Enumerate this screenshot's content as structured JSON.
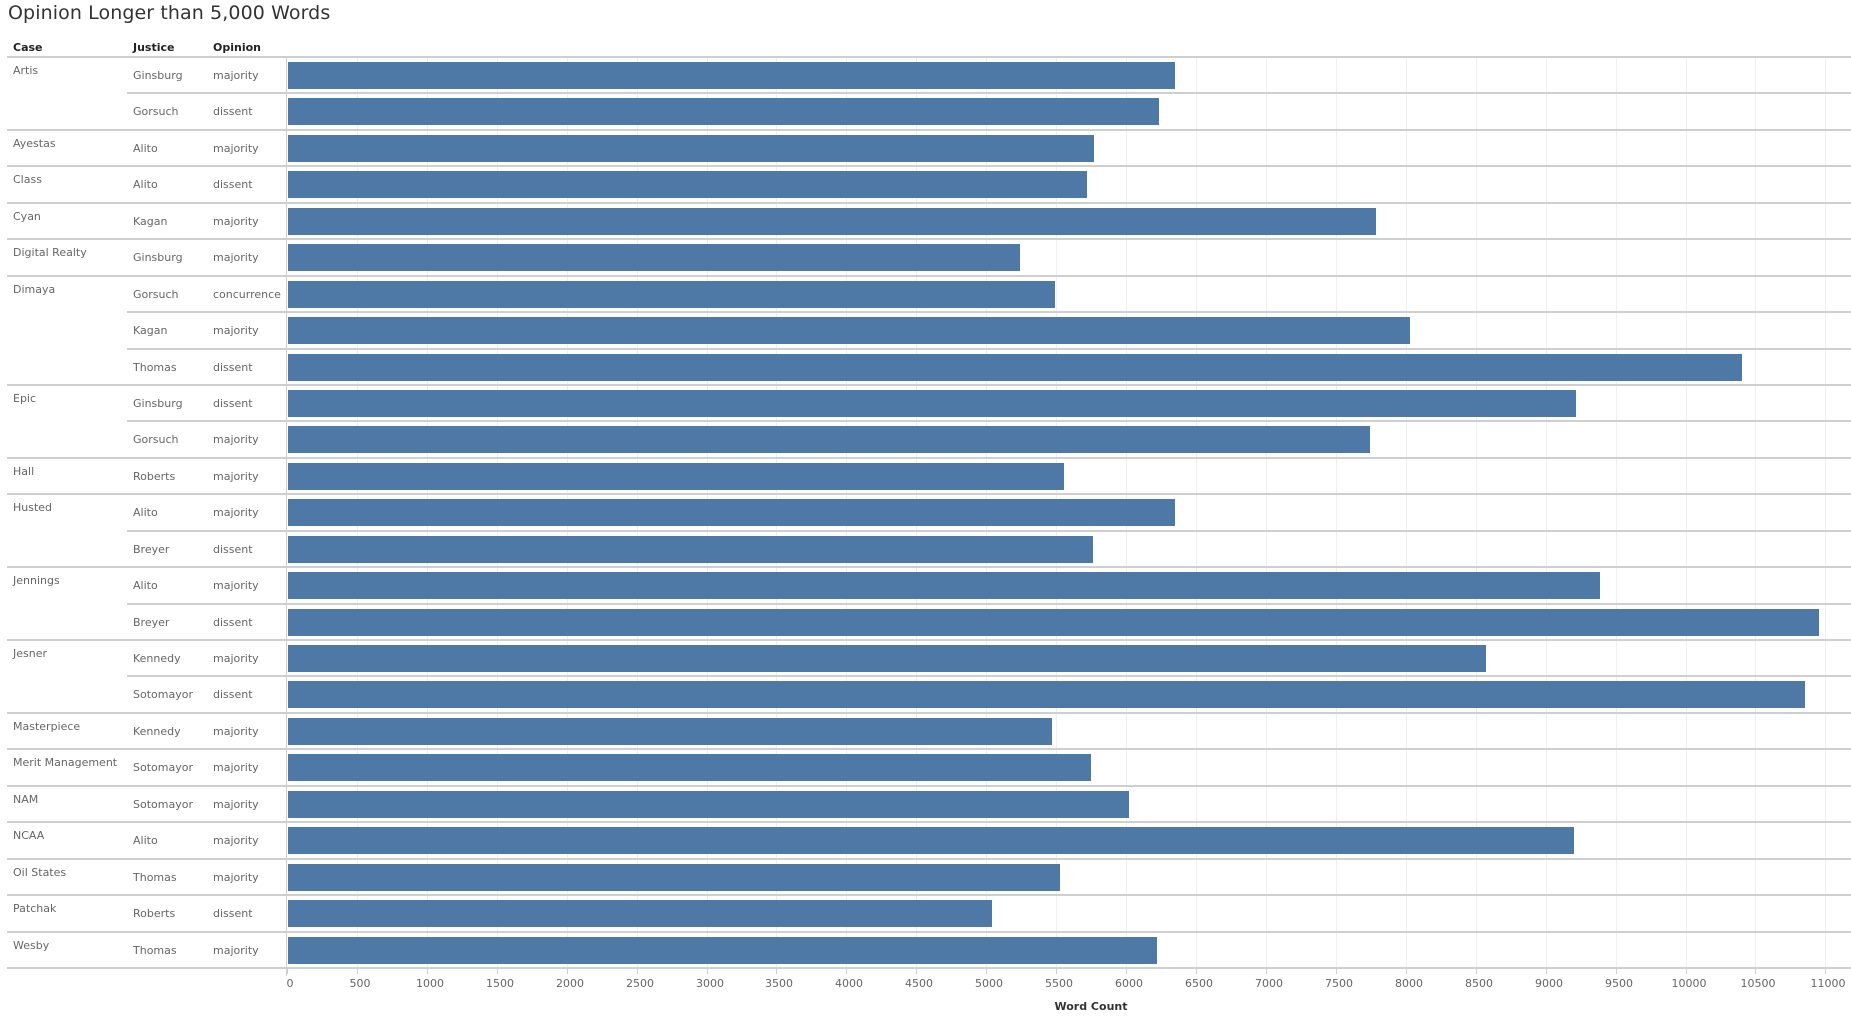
{
  "title": "Opinion Longer than 5,000 Words",
  "headers": {
    "case": "Case",
    "justice": "Justice",
    "opinion": "Opinion"
  },
  "colors": {
    "bar": "#4e79a7",
    "divider": "#cfcfcf",
    "grid": "#efefef"
  },
  "axis": {
    "title": "Word Count",
    "ticks": [
      "0",
      "500",
      "1000",
      "1500",
      "2000",
      "2500",
      "3000",
      "3500",
      "4000",
      "4500",
      "5000",
      "5500",
      "6000",
      "6500",
      "7000",
      "7500",
      "8000",
      "8500",
      "9000",
      "9500",
      "10000",
      "10500",
      "11000"
    ]
  },
  "rows": [
    {
      "case": "Artis",
      "justice": "Ginsburg",
      "opinion": "majority",
      "value": 6345,
      "group_start": true
    },
    {
      "case": "",
      "justice": "Gorsuch",
      "opinion": "dissent",
      "value": 6230,
      "group_start": false
    },
    {
      "case": "Ayestas",
      "justice": "Alito",
      "opinion": "majority",
      "value": 5765,
      "group_start": true
    },
    {
      "case": "Class",
      "justice": "Alito",
      "opinion": "dissent",
      "value": 5715,
      "group_start": true
    },
    {
      "case": "Cyan",
      "justice": "Kagan",
      "opinion": "majority",
      "value": 7782,
      "group_start": true
    },
    {
      "case": "Digital Realty",
      "justice": "Ginsburg",
      "opinion": "majority",
      "value": 5236,
      "group_start": true
    },
    {
      "case": "Dimaya",
      "justice": "Gorsuch",
      "opinion": "concurrence",
      "value": 5487,
      "group_start": true
    },
    {
      "case": "",
      "justice": "Kagan",
      "opinion": "majority",
      "value": 8026,
      "group_start": false
    },
    {
      "case": "",
      "justice": "Thomas",
      "opinion": "dissent",
      "value": 10400,
      "group_start": false
    },
    {
      "case": "Epic",
      "justice": "Ginsburg",
      "opinion": "dissent",
      "value": 9213,
      "group_start": true
    },
    {
      "case": "",
      "justice": "Gorsuch",
      "opinion": "majority",
      "value": 7740,
      "group_start": false
    },
    {
      "case": "Hall",
      "justice": "Roberts",
      "opinion": "majority",
      "value": 5551,
      "group_start": true
    },
    {
      "case": "Husted",
      "justice": "Alito",
      "opinion": "majority",
      "value": 6345,
      "group_start": true
    },
    {
      "case": "",
      "justice": "Breyer",
      "opinion": "dissent",
      "value": 5758,
      "group_start": false
    },
    {
      "case": "Jennings",
      "justice": "Alito",
      "opinion": "majority",
      "value": 9378,
      "group_start": true
    },
    {
      "case": "",
      "justice": "Breyer",
      "opinion": "dissent",
      "value": 10950,
      "group_start": false
    },
    {
      "case": "Jesner",
      "justice": "Kennedy",
      "opinion": "majority",
      "value": 8569,
      "group_start": true
    },
    {
      "case": "",
      "justice": "Sotomayor",
      "opinion": "dissent",
      "value": 10845,
      "group_start": false
    },
    {
      "case": "Masterpiece",
      "justice": "Kennedy",
      "opinion": "majority",
      "value": 5465,
      "group_start": true
    },
    {
      "case": "Merit Management",
      "justice": "Sotomayor",
      "opinion": "majority",
      "value": 5744,
      "group_start": true
    },
    {
      "case": "NAM",
      "justice": "Sotomayor",
      "opinion": "majority",
      "value": 6016,
      "group_start": true
    },
    {
      "case": "NCAA",
      "justice": "Alito",
      "opinion": "majority",
      "value": 9192,
      "group_start": true
    },
    {
      "case": "Oil States",
      "justice": "Thomas",
      "opinion": "majority",
      "value": 5522,
      "group_start": true
    },
    {
      "case": "Patchak",
      "justice": "Roberts",
      "opinion": "dissent",
      "value": 5036,
      "group_start": true
    },
    {
      "case": "Wesby",
      "justice": "Thomas",
      "opinion": "majority",
      "value": 6216,
      "group_start": true
    }
  ],
  "chart_data": {
    "type": "bar",
    "orientation": "horizontal",
    "title": "Opinion Longer than 5,000 Words",
    "xlabel": "Word Count",
    "ylabel": "",
    "row_headers": [
      "Case",
      "Justice",
      "Opinion"
    ],
    "categories": [
      "Artis | Ginsburg | majority",
      "Artis | Gorsuch | dissent",
      "Ayestas | Alito | majority",
      "Class | Alito | dissent",
      "Cyan | Kagan | majority",
      "Digital Realty | Ginsburg | majority",
      "Dimaya | Gorsuch | concurrence",
      "Dimaya | Kagan | majority",
      "Dimaya | Thomas | dissent",
      "Epic | Ginsburg | dissent",
      "Epic | Gorsuch | majority",
      "Hall | Roberts | majority",
      "Husted | Alito | majority",
      "Husted | Breyer | dissent",
      "Jennings | Alito | majority",
      "Jennings | Breyer | dissent",
      "Jesner | Kennedy | majority",
      "Jesner | Sotomayor | dissent",
      "Masterpiece | Kennedy | majority",
      "Merit Management | Sotomayor | majority",
      "NAM | Sotomayor | majority",
      "NCAA | Alito | majority",
      "Oil States | Thomas | majority",
      "Patchak | Roberts | dissent",
      "Wesby | Thomas | majority"
    ],
    "values": [
      6345,
      6230,
      5765,
      5715,
      7782,
      5236,
      5487,
      8026,
      10400,
      9213,
      7740,
      5551,
      6345,
      5758,
      9378,
      10950,
      8569,
      10845,
      5465,
      5744,
      6016,
      9192,
      5522,
      5036,
      6216
    ],
    "xlim": [
      0,
      11190
    ],
    "xticks": [
      0,
      500,
      1000,
      1500,
      2000,
      2500,
      3000,
      3500,
      4000,
      4500,
      5000,
      5500,
      6000,
      6500,
      7000,
      7500,
      8000,
      8500,
      9000,
      9500,
      10000,
      10500,
      11000
    ],
    "grid": true,
    "legend": null,
    "color": "#4e79a7"
  }
}
